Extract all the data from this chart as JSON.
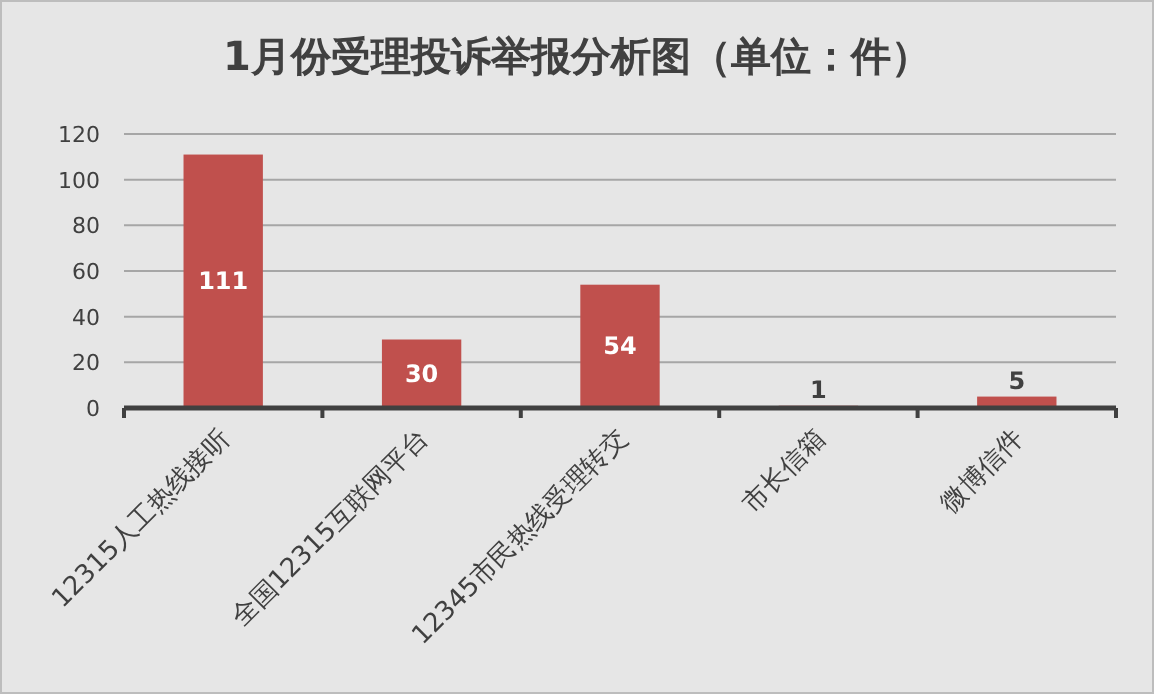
{
  "chart_data": {
    "type": "bar",
    "title": "1月份受理投诉举报分析图（单位：件）",
    "categories": [
      "12315人工热线接听",
      "全国12315互联网平台",
      "12345市民热线受理转交",
      "市长信箱",
      "微博信件"
    ],
    "values": [
      111,
      30,
      54,
      1,
      5
    ],
    "color": "#c0504d",
    "ylim": [
      0,
      120
    ],
    "yticks": [
      0,
      20,
      40,
      60,
      80,
      100,
      120
    ],
    "grid": "y",
    "data_labels": true
  }
}
